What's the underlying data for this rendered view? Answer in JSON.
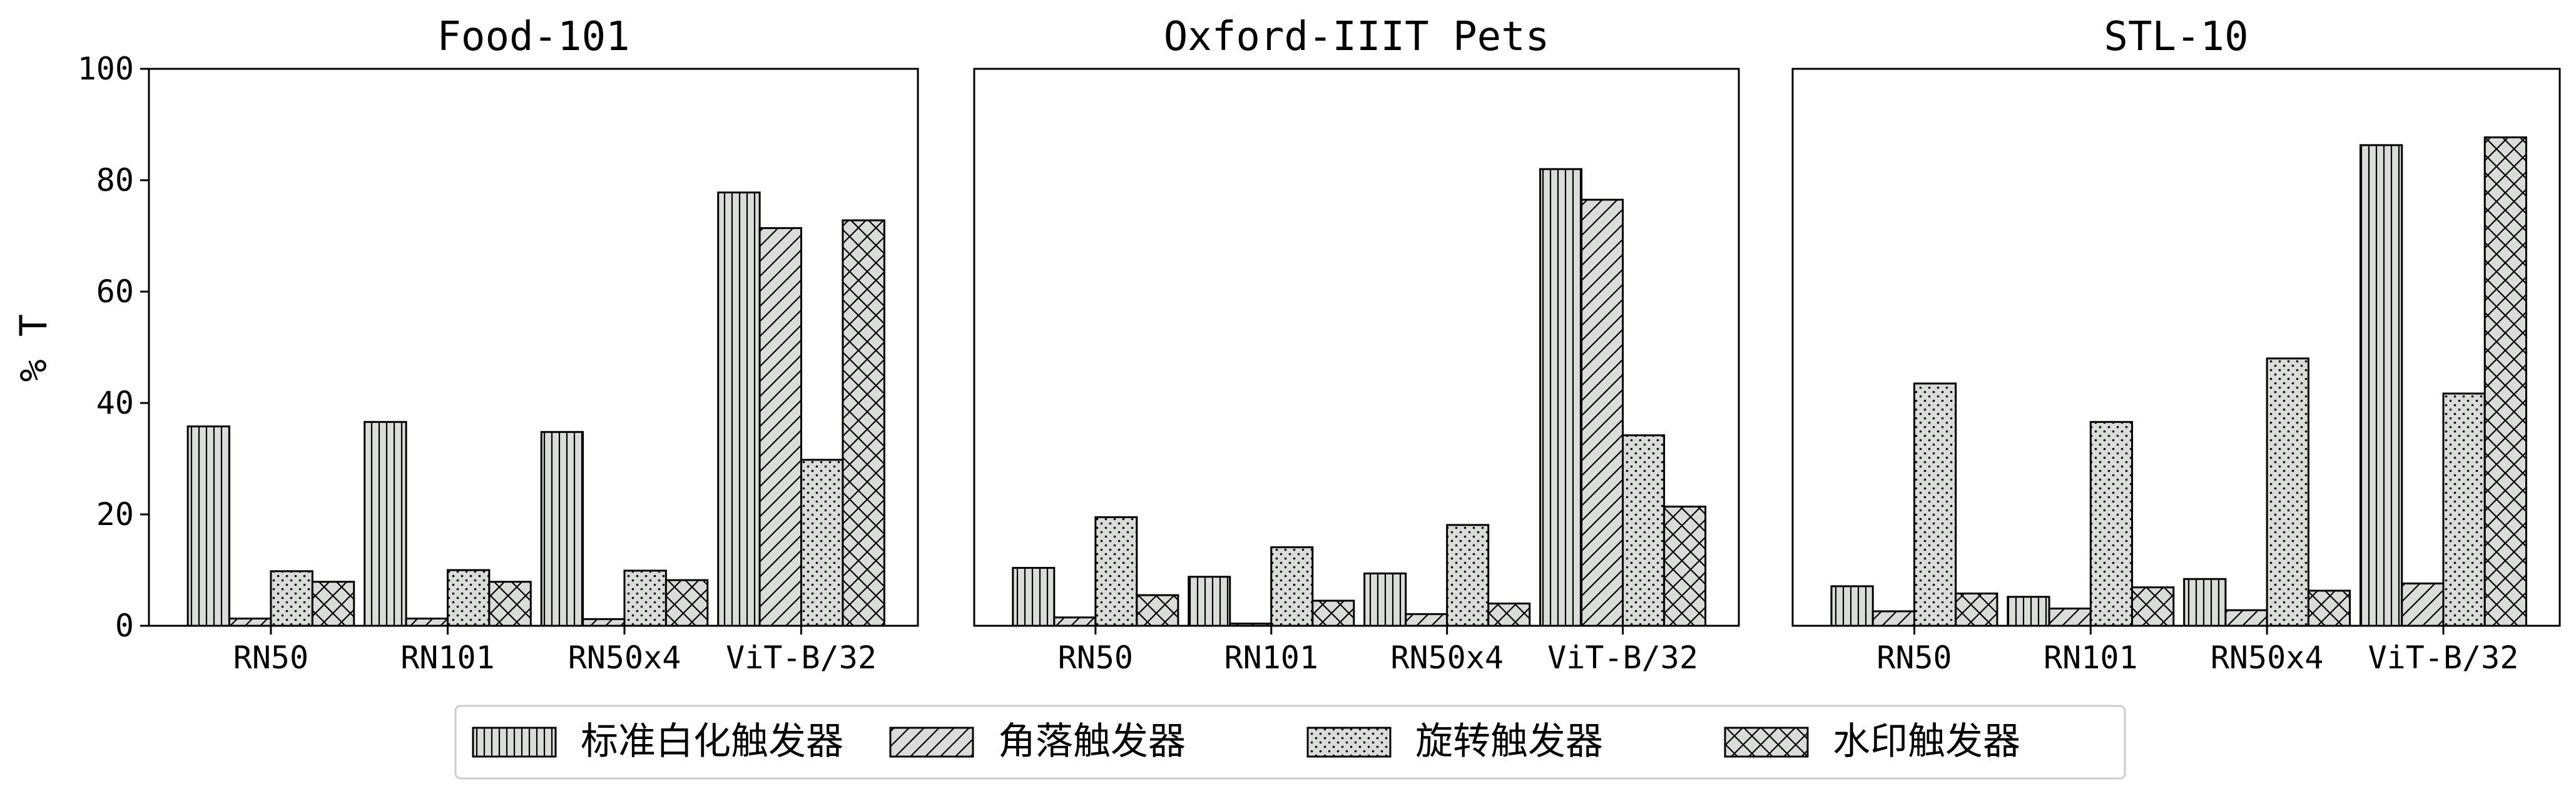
{
  "chart_data": {
    "type": "bar",
    "ylabel": "% T",
    "ylim": [
      0,
      100
    ],
    "yticks": [
      0,
      20,
      40,
      60,
      80,
      100
    ],
    "categories": [
      "RN50",
      "RN101",
      "RN50x4",
      "ViT-B/32"
    ],
    "bar_fill": "#d9dcd7",
    "series_names": [
      "标准白化触发器",
      "角落触发器",
      "旋转触发器",
      "水印触发器"
    ],
    "series_patterns": [
      "vertical-lines",
      "diagonal-lines",
      "dots",
      "crosshatch"
    ],
    "legend_position": "bottom-center",
    "grid": false,
    "panels": [
      {
        "title": "Food-101",
        "values": [
          [
            35.8,
            1.3,
            9.8,
            7.9
          ],
          [
            36.6,
            1.3,
            10.0,
            7.9
          ],
          [
            34.8,
            1.2,
            9.9,
            8.2
          ],
          [
            77.8,
            71.4,
            29.8,
            72.8
          ]
        ]
      },
      {
        "title": "Oxford-IIIT Pets",
        "values": [
          [
            10.4,
            1.5,
            19.5,
            5.5
          ],
          [
            8.8,
            0.4,
            14.1,
            4.5
          ],
          [
            9.4,
            2.1,
            18.1,
            4.0
          ],
          [
            82.0,
            76.5,
            34.2,
            21.4
          ]
        ]
      },
      {
        "title": "STL-10",
        "values": [
          [
            7.1,
            2.6,
            43.5,
            5.8
          ],
          [
            5.2,
            3.1,
            36.6,
            6.9
          ],
          [
            8.4,
            2.8,
            48.0,
            6.3
          ],
          [
            86.3,
            7.6,
            41.7,
            87.7
          ]
        ]
      }
    ]
  }
}
